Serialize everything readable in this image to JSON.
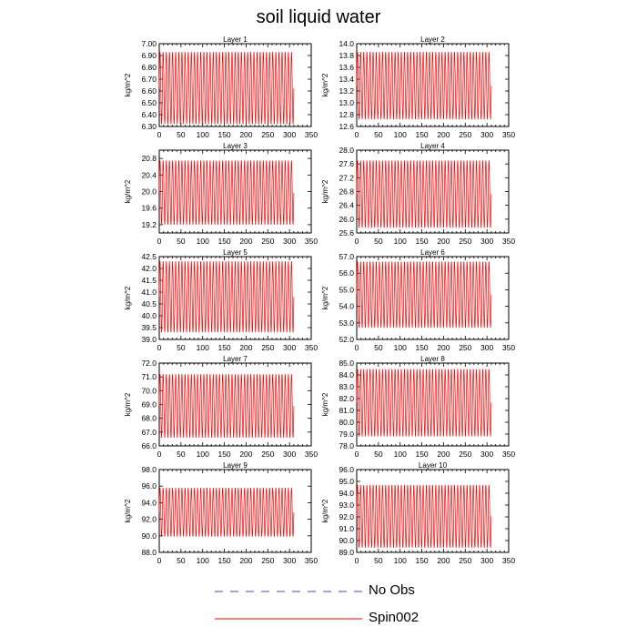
{
  "title": "soil liquid water",
  "legend": [
    {
      "label": "No Obs",
      "color": "#4a4ab8",
      "style": "dashed"
    },
    {
      "label": "Spin002",
      "color": "#ff0000",
      "style": "solid"
    }
  ],
  "colors": {
    "series": "#ff0000",
    "no_obs": "#4a4ab8"
  },
  "chart_data": [
    {
      "type": "line",
      "title": "Layer 1",
      "ylabel": "kg/m^2",
      "xlim": [
        0,
        350
      ],
      "xticks": [
        0,
        50,
        100,
        150,
        200,
        250,
        300,
        350
      ],
      "ylim": [
        6.3,
        7.0
      ],
      "yticks": [
        "6.30",
        "6.40",
        "6.50",
        "6.60",
        "6.70",
        "6.80",
        "6.90",
        "7.00"
      ],
      "series": [
        {
          "name": "Spin002",
          "x_range": [
            0,
            310
          ],
          "cycles": 43,
          "min": 6.32,
          "max": 6.93
        }
      ]
    },
    {
      "type": "line",
      "title": "Layer 2",
      "ylabel": "kg/m^2",
      "xlim": [
        0,
        350
      ],
      "xticks": [
        0,
        50,
        100,
        150,
        200,
        250,
        300,
        350
      ],
      "ylim": [
        12.6,
        14.0
      ],
      "yticks": [
        "12.6",
        "12.8",
        "13.0",
        "13.2",
        "13.4",
        "13.6",
        "13.8",
        "14.0"
      ],
      "series": [
        {
          "name": "Spin002",
          "x_range": [
            0,
            310
          ],
          "cycles": 43,
          "min": 12.72,
          "max": 13.86
        }
      ]
    },
    {
      "type": "line",
      "title": "Layer 3",
      "ylabel": "kg/m^2",
      "xlim": [
        0,
        350
      ],
      "xticks": [
        0,
        50,
        100,
        150,
        200,
        250,
        300,
        350
      ],
      "ylim": [
        19.0,
        21.0
      ],
      "yticks": [
        "19.2",
        "19.6",
        "20.0",
        "20.4",
        "20.8"
      ],
      "series": [
        {
          "name": "Spin002",
          "x_range": [
            0,
            310
          ],
          "cycles": 43,
          "min": 19.2,
          "max": 20.75
        }
      ]
    },
    {
      "type": "line",
      "title": "Layer 4",
      "ylabel": "kg/m^2",
      "xlim": [
        0,
        350
      ],
      "xticks": [
        0,
        50,
        100,
        150,
        200,
        250,
        300,
        350
      ],
      "ylim": [
        25.6,
        28.0
      ],
      "yticks": [
        "25.6",
        "26.0",
        "26.4",
        "26.8",
        "27.2",
        "27.6",
        "28.0"
      ],
      "series": [
        {
          "name": "Spin002",
          "x_range": [
            0,
            310
          ],
          "cycles": 43,
          "min": 25.75,
          "max": 27.7
        }
      ]
    },
    {
      "type": "line",
      "title": "Layer 5",
      "ylabel": "kg/m^2",
      "xlim": [
        0,
        350
      ],
      "xticks": [
        0,
        50,
        100,
        150,
        200,
        250,
        300,
        350
      ],
      "ylim": [
        39.0,
        42.5
      ],
      "yticks": [
        "39.0",
        "39.5",
        "40.0",
        "40.5",
        "41.0",
        "41.5",
        "42.0",
        "42.5"
      ],
      "series": [
        {
          "name": "Spin002",
          "x_range": [
            0,
            310
          ],
          "cycles": 43,
          "min": 39.3,
          "max": 42.3
        }
      ]
    },
    {
      "type": "line",
      "title": "Layer 6",
      "ylabel": "kg/m^2",
      "xlim": [
        0,
        350
      ],
      "xticks": [
        0,
        50,
        100,
        150,
        200,
        250,
        300,
        350
      ],
      "ylim": [
        52.0,
        57.0
      ],
      "yticks": [
        "52.0",
        "53.0",
        "54.0",
        "55.0",
        "56.0",
        "57.0"
      ],
      "series": [
        {
          "name": "Spin002",
          "x_range": [
            0,
            310
          ],
          "cycles": 43,
          "min": 52.7,
          "max": 56.7
        }
      ]
    },
    {
      "type": "line",
      "title": "Layer 7",
      "ylabel": "kg/m^2",
      "xlim": [
        0,
        350
      ],
      "xticks": [
        0,
        50,
        100,
        150,
        200,
        250,
        300,
        350
      ],
      "ylim": [
        66.0,
        72.0
      ],
      "yticks": [
        "66.0",
        "67.0",
        "68.0",
        "69.0",
        "70.0",
        "71.0",
        "72.0"
      ],
      "series": [
        {
          "name": "Spin002",
          "x_range": [
            0,
            310
          ],
          "cycles": 43,
          "min": 66.6,
          "max": 71.2
        }
      ]
    },
    {
      "type": "line",
      "title": "Layer 8",
      "ylabel": "kg/m^2",
      "xlim": [
        0,
        350
      ],
      "xticks": [
        0,
        50,
        100,
        150,
        200,
        250,
        300,
        350
      ],
      "ylim": [
        78.0,
        85.0
      ],
      "yticks": [
        "78.0",
        "79.0",
        "80.0",
        "81.0",
        "82.0",
        "83.0",
        "84.0",
        "85.0"
      ],
      "series": [
        {
          "name": "Spin002",
          "x_range": [
            0,
            310
          ],
          "cycles": 43,
          "min": 78.8,
          "max": 84.5
        }
      ]
    },
    {
      "type": "line",
      "title": "Layer 9",
      "ylabel": "kg/m^2",
      "xlim": [
        0,
        350
      ],
      "xticks": [
        0,
        50,
        100,
        150,
        200,
        250,
        300,
        350
      ],
      "ylim": [
        88.0,
        98.0
      ],
      "yticks": [
        "88.0",
        "90.0",
        "92.0",
        "94.0",
        "96.0",
        "98.0"
      ],
      "series": [
        {
          "name": "Spin002",
          "x_range": [
            0,
            310
          ],
          "cycles": 43,
          "min": 89.9,
          "max": 95.8
        }
      ]
    },
    {
      "type": "line",
      "title": "Layer 10",
      "ylabel": "kg/m^2",
      "xlim": [
        0,
        350
      ],
      "xticks": [
        0,
        50,
        100,
        150,
        200,
        250,
        300,
        350
      ],
      "ylim": [
        89.0,
        96.0
      ],
      "yticks": [
        "89.0",
        "90.0",
        "91.0",
        "92.0",
        "93.0",
        "94.0",
        "95.0",
        "96.0"
      ],
      "series": [
        {
          "name": "Spin002",
          "x_range": [
            0,
            310
          ],
          "cycles": 43,
          "min": 89.4,
          "max": 94.7
        }
      ]
    }
  ]
}
